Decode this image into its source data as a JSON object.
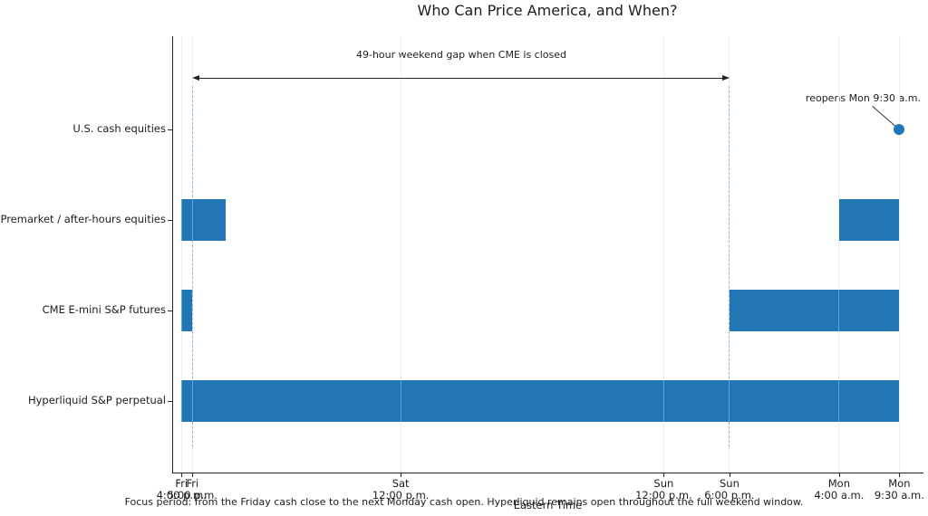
{
  "title": "Who Can Price America, and When?",
  "caption": "Focus period: from the Friday cash close to the next Monday cash open. Hyperliquid remains open throughout the full weekend window.",
  "annotations": {
    "gap_label": "49-hour weekend gap when CME is closed",
    "reopen_label": "reopens Mon 9:30 a.m."
  },
  "colors": {
    "bar": "#2077b4",
    "dashed_marker": "#5195ce",
    "gridline": "#e7e7ef",
    "axis": "#262626",
    "arrow": "#222222"
  },
  "chart_data": {
    "type": "bar",
    "subtype": "horizontal-timeline-gantt",
    "title": "Who Can Price America, and When?",
    "xlabel": "Eastern Time",
    "ylabel": "",
    "grid": "vertical-on",
    "time_axis": {
      "label": "Eastern Time",
      "units": "hours since Friday 4:00 p.m. ET",
      "xlim_hours": [
        -0.85,
        67.7
      ],
      "ticks": [
        {
          "hour": 0,
          "day": "Fri",
          "time": "4:00 p.m."
        },
        {
          "hour": 1,
          "day": "Fri",
          "time": "5:00 p.m."
        },
        {
          "hour": 20,
          "day": "Sat",
          "time": "12:00 p.m."
        },
        {
          "hour": 44,
          "day": "Sun",
          "time": "12:00 p.m."
        },
        {
          "hour": 50,
          "day": "Sun",
          "time": "6:00 p.m."
        },
        {
          "hour": 60,
          "day": "Mon",
          "time": "4:00 a.m."
        },
        {
          "hour": 65.5,
          "day": "Mon",
          "time": "9:30 a.m."
        }
      ]
    },
    "rows": [
      {
        "label": "U.S. cash equities",
        "bars": [],
        "marker": {
          "hour": 65.5,
          "note": "reopens Mon 9:30 a.m."
        }
      },
      {
        "label": "Premarket / after-hours equities",
        "bars": [
          [
            0,
            4
          ],
          [
            60,
            65.5
          ]
        ]
      },
      {
        "label": "CME E-mini S&P futures",
        "bars": [
          [
            0,
            1
          ],
          [
            50,
            65.5
          ]
        ]
      },
      {
        "label": "Hyperliquid S&P perpetual",
        "bars": [
          [
            0,
            65.5
          ]
        ]
      }
    ],
    "dashed_markers_hours": [
      1,
      50
    ],
    "gap_arrow": {
      "from_hour": 1,
      "to_hour": 50,
      "label": "49-hour weekend gap when CME is closed"
    }
  }
}
